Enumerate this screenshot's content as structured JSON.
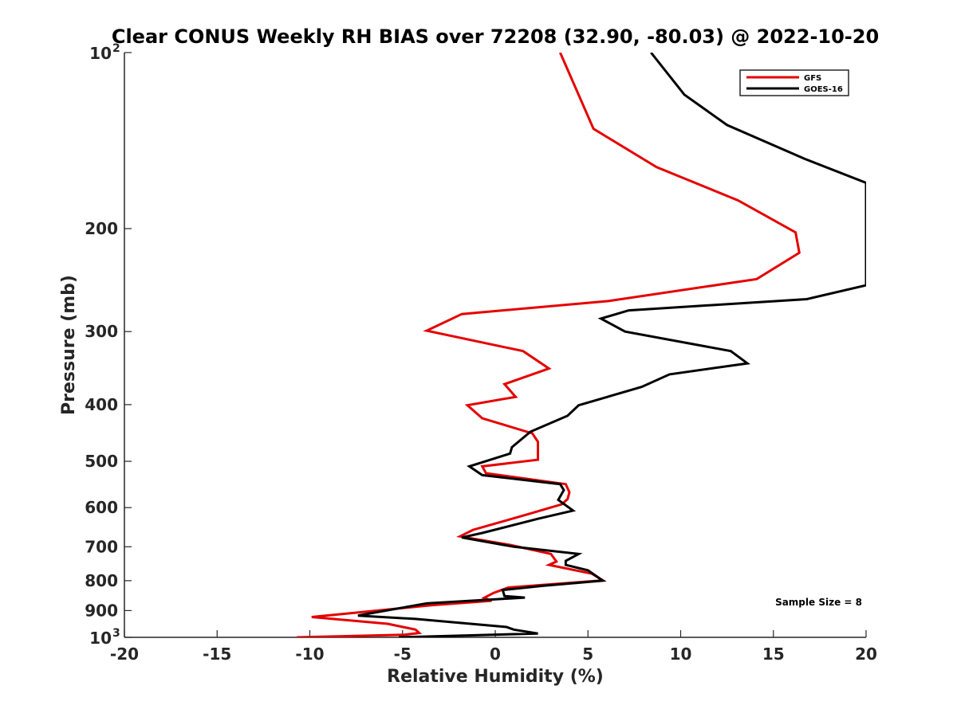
{
  "chart_data": {
    "type": "line",
    "title": "Clear CONUS Weekly RH BIAS over 72208 (32.90, -80.03) @ 2022-10-20",
    "xlabel": "Relative Humidity (%)",
    "ylabel": "Pressure (mb)",
    "xlim": [
      -20,
      20
    ],
    "ylim": [
      100,
      1000
    ],
    "y_scale": "log",
    "y_reversed": true,
    "grid": false,
    "legend_position": "top-right",
    "x_ticks": [
      {
        "value": -20,
        "label": "-20"
      },
      {
        "value": -15,
        "label": "-15"
      },
      {
        "value": -10,
        "label": "-10"
      },
      {
        "value": -5,
        "label": "-5"
      },
      {
        "value": 0,
        "label": "0"
      },
      {
        "value": 5,
        "label": "5"
      },
      {
        "value": 10,
        "label": "10"
      },
      {
        "value": 15,
        "label": "15"
      },
      {
        "value": 20,
        "label": "20"
      }
    ],
    "y_ticks": [
      {
        "value": 100,
        "label": "10",
        "exponent": "2"
      },
      {
        "value": 200,
        "label": "200"
      },
      {
        "value": 300,
        "label": "300"
      },
      {
        "value": 400,
        "label": "400"
      },
      {
        "value": 500,
        "label": "500"
      },
      {
        "value": 600,
        "label": "600"
      },
      {
        "value": 700,
        "label": "700"
      },
      {
        "value": 800,
        "label": "800"
      },
      {
        "value": 900,
        "label": "900"
      },
      {
        "value": 1000,
        "label": "10",
        "exponent": "3"
      }
    ],
    "series": [
      {
        "name": "GFS",
        "color": "#e50000",
        "points": [
          [
            3.5,
            100
          ],
          [
            5.3,
            135
          ],
          [
            8.7,
            157
          ],
          [
            13.1,
            179
          ],
          [
            16.2,
            203
          ],
          [
            16.4,
            220
          ],
          [
            14.1,
            244
          ],
          [
            6.1,
            266
          ],
          [
            -1.8,
            280
          ],
          [
            -3.7,
            299
          ],
          [
            1.5,
            324
          ],
          [
            2.9,
            347
          ],
          [
            0.5,
            369
          ],
          [
            1.1,
            388
          ],
          [
            -1.5,
            401
          ],
          [
            -0.7,
            422
          ],
          [
            2.0,
            448
          ],
          [
            2.3,
            463
          ],
          [
            2.3,
            497
          ],
          [
            -0.7,
            510
          ],
          [
            -0.5,
            524
          ],
          [
            3.8,
            547
          ],
          [
            4.0,
            565
          ],
          [
            3.9,
            580
          ],
          [
            3.6,
            592
          ],
          [
            1.6,
            618
          ],
          [
            -1.2,
            655
          ],
          [
            -1.9,
            672
          ],
          [
            0.8,
            695
          ],
          [
            3.0,
            720
          ],
          [
            3.3,
            742
          ],
          [
            2.9,
            752
          ],
          [
            5.2,
            778
          ],
          [
            5.8,
            799
          ],
          [
            0.7,
            822
          ],
          [
            -0.1,
            840
          ],
          [
            -0.6,
            856
          ],
          [
            -0.2,
            866
          ],
          [
            -3.4,
            881
          ],
          [
            -7.6,
            908
          ],
          [
            -9.9,
            923
          ],
          [
            -5.8,
            948
          ],
          [
            -4.3,
            970
          ],
          [
            -4.1,
            983
          ],
          [
            -4.9,
            990
          ],
          [
            -10.7,
            1000
          ]
        ]
      },
      {
        "name": "GOES-16",
        "color": "#000000",
        "points": [
          [
            8.4,
            100
          ],
          [
            10.2,
            118
          ],
          [
            12.5,
            133
          ],
          [
            16.7,
            152
          ],
          [
            20.0,
            167
          ],
          [
            20.0,
            250
          ],
          [
            16.8,
            264
          ],
          [
            7.2,
            276
          ],
          [
            5.7,
            285
          ],
          [
            7.0,
            300
          ],
          [
            12.7,
            324
          ],
          [
            13.6,
            340
          ],
          [
            9.4,
            355
          ],
          [
            7.9,
            373
          ],
          [
            4.5,
            401
          ],
          [
            3.9,
            418
          ],
          [
            1.9,
            445
          ],
          [
            0.9,
            473
          ],
          [
            0.8,
            485
          ],
          [
            -1.4,
            510
          ],
          [
            -0.7,
            528
          ],
          [
            3.5,
            547
          ],
          [
            3.7,
            560
          ],
          [
            3.4,
            582
          ],
          [
            4.2,
            607
          ],
          [
            2.3,
            627
          ],
          [
            -0.7,
            663
          ],
          [
            -1.8,
            675
          ],
          [
            1.0,
            700
          ],
          [
            4.5,
            720
          ],
          [
            3.8,
            740
          ],
          [
            3.8,
            752
          ],
          [
            5.0,
            768
          ],
          [
            5.8,
            800
          ],
          [
            2.6,
            816
          ],
          [
            0.4,
            830
          ],
          [
            0.5,
            850
          ],
          [
            1.6,
            855
          ],
          [
            -3.7,
            875
          ],
          [
            -7.4,
            918
          ],
          [
            -4.3,
            930
          ],
          [
            0.6,
            960
          ],
          [
            1.0,
            970
          ],
          [
            2.3,
            985
          ],
          [
            -5.2,
            1000
          ]
        ]
      }
    ],
    "annotations": [
      {
        "text": "Sample Size = 8",
        "x": 15.1,
        "y": 910
      }
    ]
  }
}
